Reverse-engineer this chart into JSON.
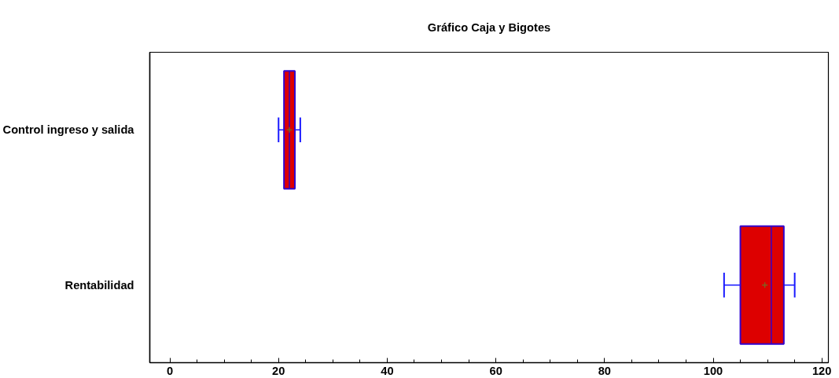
{
  "chart_data": {
    "type": "box",
    "orientation": "horizontal",
    "title": "Gráfico Caja y Bigotes",
    "categories": [
      "Control ingreso y salida",
      "Rentabilidad"
    ],
    "series": [
      {
        "color": "#dd0000",
        "boxes": [
          {
            "low": 20,
            "q1": 21,
            "median": 22,
            "q3": 23,
            "high": 24,
            "mean": 22
          },
          {
            "low": 102,
            "q1": 105,
            "median": 110.7,
            "q3": 113,
            "high": 115,
            "mean": 109.5
          }
        ]
      }
    ],
    "xlim": [
      -3.7,
      121.2
    ],
    "xticks": [
      0,
      {
        "value": 5,
        "label": null
      },
      {
        "value": 10,
        "label": null
      },
      {
        "value": 15,
        "label": null
      },
      20,
      {
        "value": 25,
        "label": null
      },
      {
        "value": 30,
        "label": null
      },
      {
        "value": 35,
        "label": null
      },
      40,
      {
        "value": 45,
        "label": null
      },
      {
        "value": 50,
        "label": null
      },
      {
        "value": 55,
        "label": null
      },
      60,
      {
        "value": 65,
        "label": null
      },
      {
        "value": 70,
        "label": null
      },
      {
        "value": 75,
        "label": null
      },
      80,
      {
        "value": 85,
        "label": null
      },
      {
        "value": 90,
        "label": null
      },
      {
        "value": 95,
        "label": null
      },
      100,
      {
        "value": 105,
        "label": null
      },
      {
        "value": 110,
        "label": null
      },
      {
        "value": 115,
        "label": null
      },
      120
    ],
    "grid": false,
    "marker": "cross"
  }
}
